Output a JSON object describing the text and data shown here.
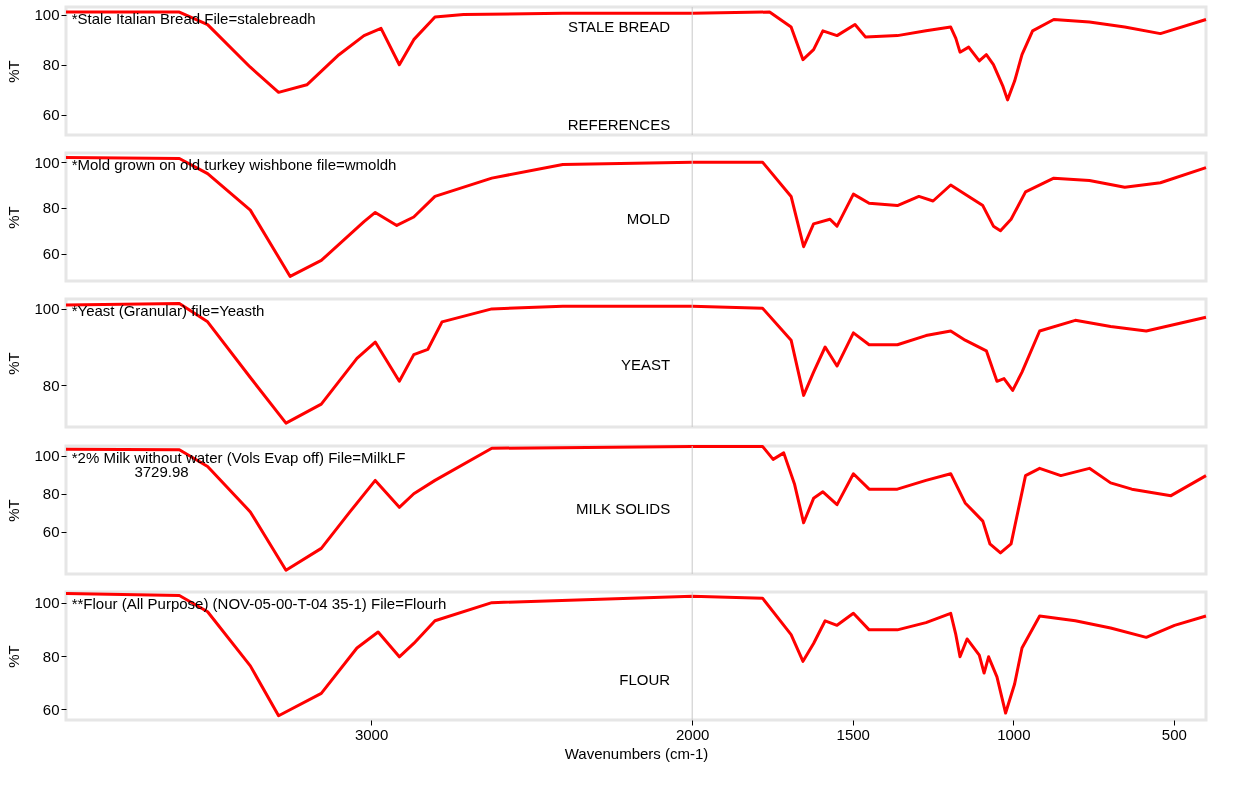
{
  "chart_data": [
    {
      "type": "line",
      "ylabel": "%T",
      "xlim": [
        3950,
        400
      ],
      "ylim": [
        52,
        103
      ],
      "yticks": [
        60,
        80,
        100
      ],
      "tick_labels": "y",
      "grid": false,
      "line_style": "solid",
      "annotations": [
        "*Stale Italian Bread File=stalebreadh",
        "STALE BREAD",
        "REFERENCES"
      ],
      "ref_lines": [
        {
          "axis": "x",
          "value": 2000,
          "color": "#c8c8c8"
        }
      ],
      "series": [
        {
          "color": "#ff0000",
          "x": [
            3950,
            3597,
            3509,
            3376,
            3288,
            3200,
            3100,
            3022,
            2969,
            2912,
            2867,
            2801,
            2712,
            2403,
            2000,
            1759,
            1692,
            1655,
            1622,
            1593,
            1549,
            1493,
            1460,
            1361,
            1272,
            1195,
            1179,
            1166,
            1139,
            1106,
            1084,
            1062,
            1033,
            1018,
            996,
            973,
            940,
            874,
            763,
            653,
            542,
            400
          ],
          "values": [
            101,
            101,
            96,
            79,
            69,
            72,
            84,
            91.6,
            94.5,
            80,
            90,
            99,
            100,
            100.5,
            100.5,
            101,
            95,
            82,
            86,
            93.5,
            91.6,
            96,
            91,
            91.6,
            93.5,
            95,
            90.5,
            85,
            87,
            81.5,
            84,
            80,
            71.6,
            66,
            73.5,
            84,
            93.5,
            98,
            97,
            95,
            92.4,
            98
          ]
        }
      ]
    },
    {
      "type": "line",
      "ylabel": "%T",
      "xlim": [
        3950,
        400
      ],
      "ylim": [
        48,
        104
      ],
      "yticks": [
        60,
        80,
        100
      ],
      "tick_labels": "y",
      "grid": false,
      "line_style": "solid",
      "annotations": [
        "*Mold grown on old turkey wishbone file=wmoldh",
        "MOLD"
      ],
      "ref_lines": [
        {
          "axis": "x",
          "value": 2000,
          "color": "#c8c8c8"
        }
      ],
      "series": [
        {
          "color": "#ff0000",
          "x": [
            3950,
            3597,
            3509,
            3376,
            3252,
            3155,
            3022,
            2987,
            2920,
            2867,
            2801,
            2624,
            2403,
            2000,
            1781,
            1692,
            1653,
            1622,
            1571,
            1549,
            1498,
            1449,
            1361,
            1294,
            1250,
            1195,
            1150,
            1095,
            1062,
            1040,
            1007,
            962,
            874,
            763,
            653,
            542,
            400
          ],
          "values": [
            102,
            101.6,
            95,
            79,
            50,
            57,
            74,
            78,
            72.3,
            76,
            85,
            93,
            99,
            100,
            100,
            85,
            63,
            73,
            75,
            72,
            86,
            82,
            81,
            85,
            83,
            90,
            86,
            81,
            72,
            70,
            75,
            87,
            93,
            92,
            89,
            91,
            97.6
          ]
        }
      ]
    },
    {
      "type": "line",
      "ylabel": "%T",
      "xlim": [
        3950,
        400
      ],
      "ylim": [
        69,
        102.6
      ],
      "yticks": [
        80,
        100
      ],
      "tick_labels": "y",
      "grid": false,
      "line_style": "solid",
      "annotations": [
        "*Yeast (Granular) file=Yeasth",
        "YEAST"
      ],
      "ref_lines": [
        {
          "axis": "x",
          "value": 2000,
          "color": "#c8c8c8"
        }
      ],
      "series": [
        {
          "color": "#ff0000",
          "x": [
            3950,
            3597,
            3509,
            3376,
            3265,
            3155,
            3044,
            2987,
            2912,
            2867,
            2823,
            2779,
            2624,
            2403,
            2000,
            1781,
            1692,
            1653,
            1622,
            1586,
            1549,
            1498,
            1449,
            1361,
            1272,
            1195,
            1150,
            1084,
            1051,
            1029,
            1002,
            973,
            918,
            807,
            697,
            586,
            400
          ],
          "values": [
            101,
            101.4,
            96.6,
            82,
            70,
            75,
            87,
            91.3,
            81,
            88,
            89.4,
            96.6,
            100,
            100.7,
            100.7,
            100.2,
            91.8,
            77.3,
            83.4,
            90,
            85,
            93.7,
            90.6,
            90.6,
            93,
            94.2,
            91.8,
            89,
            81,
            81.7,
            78.6,
            83.4,
            94.2,
            97,
            95.4,
            94.2,
            97.8
          ]
        }
      ]
    },
    {
      "type": "line",
      "ylabel": "%T",
      "xlim": [
        3950,
        400
      ],
      "ylim": [
        38,
        105
      ],
      "yticks": [
        60,
        80,
        100
      ],
      "tick_labels": "y",
      "grid": false,
      "line_style": "solid",
      "annotations": [
        "*2% Milk without water (Vols Evap off) File=MilkLF",
        "MILK SOLIDS",
        "3729.98"
      ],
      "ref_lines": [
        {
          "axis": "x",
          "value": 2000,
          "color": "#c8c8c8"
        }
      ],
      "series": [
        {
          "color": "#ff0000",
          "x": [
            3950,
            3597,
            3509,
            3376,
            3265,
            3155,
            3066,
            2987,
            2912,
            2867,
            2801,
            2624,
            2000,
            1781,
            1748,
            1715,
            1681,
            1653,
            1622,
            1593,
            1549,
            1498,
            1449,
            1361,
            1272,
            1195,
            1150,
            1095,
            1073,
            1040,
            1007,
            962,
            918,
            852,
            763,
            697,
            631,
            509,
            400
          ],
          "values": [
            103.3,
            103,
            94.3,
            70.5,
            40,
            51.4,
            70.5,
            87,
            72.9,
            80,
            87,
            103.8,
            104.8,
            104.8,
            98,
            101.4,
            84.8,
            64.8,
            77.6,
            81,
            74.3,
            90.5,
            82.4,
            82.4,
            87,
            90.5,
            75.2,
            65.7,
            53.8,
            49,
            53.8,
            89.5,
            93.3,
            89.5,
            93.3,
            85.7,
            82.4,
            79,
            89.5
          ]
        }
      ]
    },
    {
      "type": "line",
      "ylabel": "%T",
      "xlabel": "Wavenumbers (cm-1)",
      "xlim": [
        3950,
        400
      ],
      "ylim": [
        56,
        104
      ],
      "xticks": [
        3000,
        2000,
        1500,
        1000,
        500
      ],
      "yticks": [
        60,
        80,
        100
      ],
      "grid": false,
      "line_style": "solid",
      "annotations": [
        "**Flour (All Purpose) (NOV-05-00-T-04 35-1) File=Flourh",
        "FLOUR"
      ],
      "ref_lines": [
        {
          "axis": "x",
          "value": 2000,
          "color": "#c8c8c8"
        }
      ],
      "series": [
        {
          "color": "#ff0000",
          "x": [
            3950,
            3597,
            3509,
            3376,
            3288,
            3155,
            3044,
            2978,
            2912,
            2867,
            2801,
            2624,
            2000,
            1781,
            1692,
            1655,
            1622,
            1586,
            1549,
            1498,
            1449,
            1361,
            1272,
            1195,
            1179,
            1166,
            1144,
            1106,
            1091,
            1077,
            1051,
            1024,
            996,
            973,
            918,
            807,
            697,
            586,
            498,
            400
          ],
          "values": [
            103.4,
            102.7,
            96.6,
            76.3,
            57.6,
            66,
            83,
            89,
            79.7,
            84.7,
            93.2,
            100,
            102.4,
            101.7,
            88,
            78,
            84.7,
            93.2,
            91.5,
            96,
            89.8,
            89.8,
            92.5,
            96,
            88,
            79.7,
            86.4,
            80.3,
            73.6,
            79.7,
            72.2,
            58.6,
            69.5,
            83,
            95,
            93.2,
            90.5,
            87,
            91.5,
            95
          ]
        }
      ]
    }
  ]
}
